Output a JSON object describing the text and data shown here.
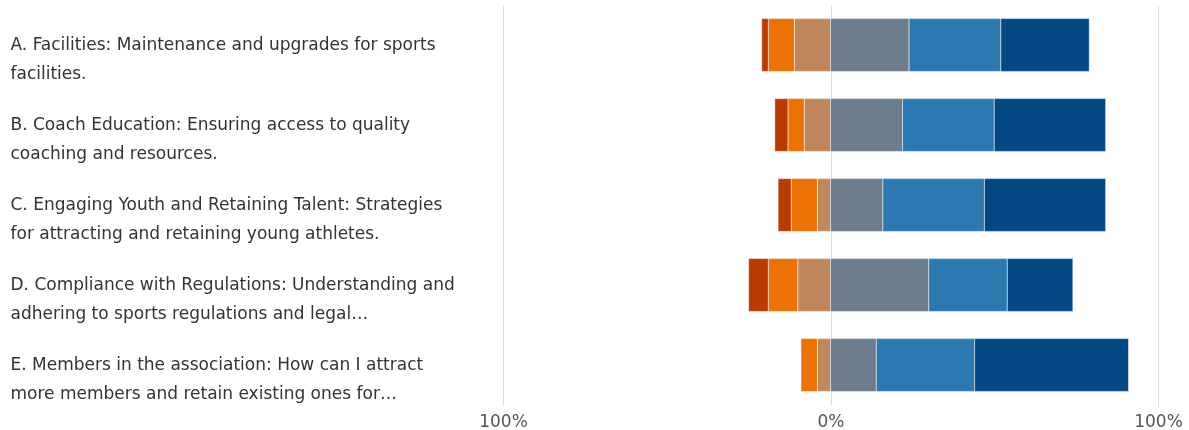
{
  "chart_data": {
    "type": "bar",
    "orientation": "horizontal",
    "stacked": true,
    "categories": [
      "A. Facilities: Maintenance and upgrades for sports facilities.",
      "B. Coach Education: Ensuring access to quality coaching and resources.",
      "C. Engaging Youth and Retaining Talent: Strategies for attracting and retaining young athletes.",
      "D. Compliance with Regulations: Understanding and adhering to sports regulations and legal…",
      "E. Members in the association: How can I attract more members and retain existing ones for…"
    ],
    "series": [
      {
        "color": "#c1875c",
        "values": [
          -11,
          -8,
          -4,
          -10,
          -4
        ]
      },
      {
        "color": "#ec7206",
        "values": [
          -8,
          -5,
          -8,
          -9,
          -5
        ]
      },
      {
        "color": "#b93b04",
        "values": [
          -2,
          -4,
          -4,
          -6,
          null
        ]
      },
      {
        "color": "#6e7d8e",
        "values": [
          24,
          22,
          16,
          30,
          14
        ]
      },
      {
        "color": "#2b79b0",
        "values": [
          28,
          28,
          31,
          24,
          30
        ]
      },
      {
        "color": "#034883",
        "values": [
          27,
          34,
          37,
          20,
          47
        ]
      }
    ],
    "xlim": [
      -100,
      100
    ],
    "xticks": [
      {
        "value": -100,
        "label": "100%"
      },
      {
        "value": 0,
        "label": "0%"
      },
      {
        "value": 100,
        "label": "100%"
      }
    ],
    "grid": "x"
  }
}
